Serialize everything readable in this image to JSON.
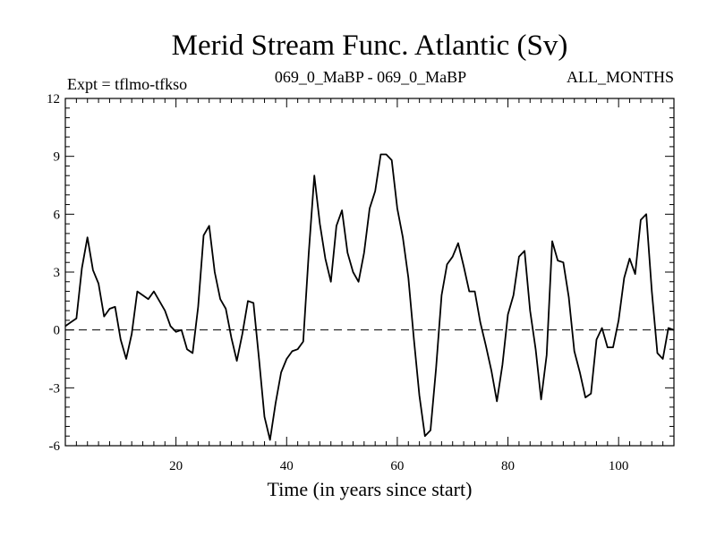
{
  "header": {
    "title": "Merid Stream Func. Atlantic (Sv)",
    "left_label": "Expt = tflmo-tfkso",
    "center_label": "069_0_MaBP - 069_0_MaBP",
    "right_label": "ALL_MONTHS"
  },
  "chart_data": {
    "type": "line",
    "xlabel": "Time (in years since start)",
    "ylabel": "",
    "xlim": [
      0,
      110
    ],
    "ylim": [
      -6,
      12
    ],
    "x_ticks": [
      20,
      40,
      60,
      80,
      100
    ],
    "y_ticks": [
      -6,
      -3,
      0,
      3,
      6,
      9,
      12
    ],
    "zero_line": true,
    "grid": false,
    "line_color": "#000000",
    "series": [
      {
        "x": [
          0,
          1,
          2,
          3,
          4,
          5,
          6,
          7,
          8,
          9,
          10,
          11,
          12,
          13,
          14,
          15,
          16,
          17,
          18,
          19,
          20,
          21,
          22,
          23,
          24,
          25,
          26,
          27,
          28,
          29,
          30,
          31,
          32,
          33,
          34,
          35,
          36,
          37,
          38,
          39,
          40,
          41,
          42,
          43,
          44,
          45,
          46,
          47,
          48,
          49,
          50,
          51,
          52,
          53,
          54,
          55,
          56,
          57,
          58,
          59,
          60,
          61,
          62,
          63,
          64,
          65,
          66,
          67,
          68,
          69,
          70,
          71,
          72,
          73,
          74,
          75,
          76,
          77,
          78,
          79,
          80,
          81,
          82,
          83,
          84,
          85,
          86,
          87,
          88,
          89,
          90,
          91,
          92,
          93,
          94,
          95,
          96,
          97,
          98,
          99,
          100,
          101,
          102,
          103,
          104,
          105,
          106,
          107,
          108,
          109,
          110
        ],
        "values": [
          0.2,
          0.4,
          0.6,
          3.2,
          4.8,
          3.1,
          2.4,
          0.7,
          1.1,
          1.2,
          -0.5,
          -1.5,
          -0.2,
          2.0,
          1.8,
          1.6,
          2.0,
          1.5,
          1.0,
          0.2,
          -0.1,
          0.0,
          -1.0,
          -1.2,
          1.2,
          4.9,
          5.4,
          3.0,
          1.6,
          1.1,
          -0.4,
          -1.6,
          -0.2,
          1.5,
          1.4,
          -1.5,
          -4.5,
          -5.7,
          -3.8,
          -2.2,
          -1.5,
          -1.1,
          -1.0,
          -0.6,
          4.0,
          8.0,
          5.5,
          3.7,
          2.5,
          5.4,
          6.2,
          4.0,
          3.0,
          2.5,
          4.0,
          6.3,
          7.2,
          9.1,
          9.1,
          8.8,
          6.3,
          4.8,
          2.7,
          -0.5,
          -3.4,
          -5.5,
          -5.2,
          -2.0,
          1.8,
          3.4,
          3.8,
          4.5,
          3.3,
          2.0,
          2.0,
          0.4,
          -0.8,
          -2.1,
          -3.7,
          -1.8,
          0.8,
          1.8,
          3.8,
          4.1,
          1.0,
          -1.0,
          -3.6,
          -1.3,
          4.6,
          3.6,
          3.5,
          1.7,
          -1.1,
          -2.2,
          -3.5,
          -3.3,
          -0.5,
          0.1,
          -0.9,
          -0.9,
          0.5,
          2.7,
          3.7,
          2.9,
          5.7,
          6.0,
          2.0,
          -1.2,
          -1.5,
          0.1,
          0.0
        ]
      }
    ]
  }
}
